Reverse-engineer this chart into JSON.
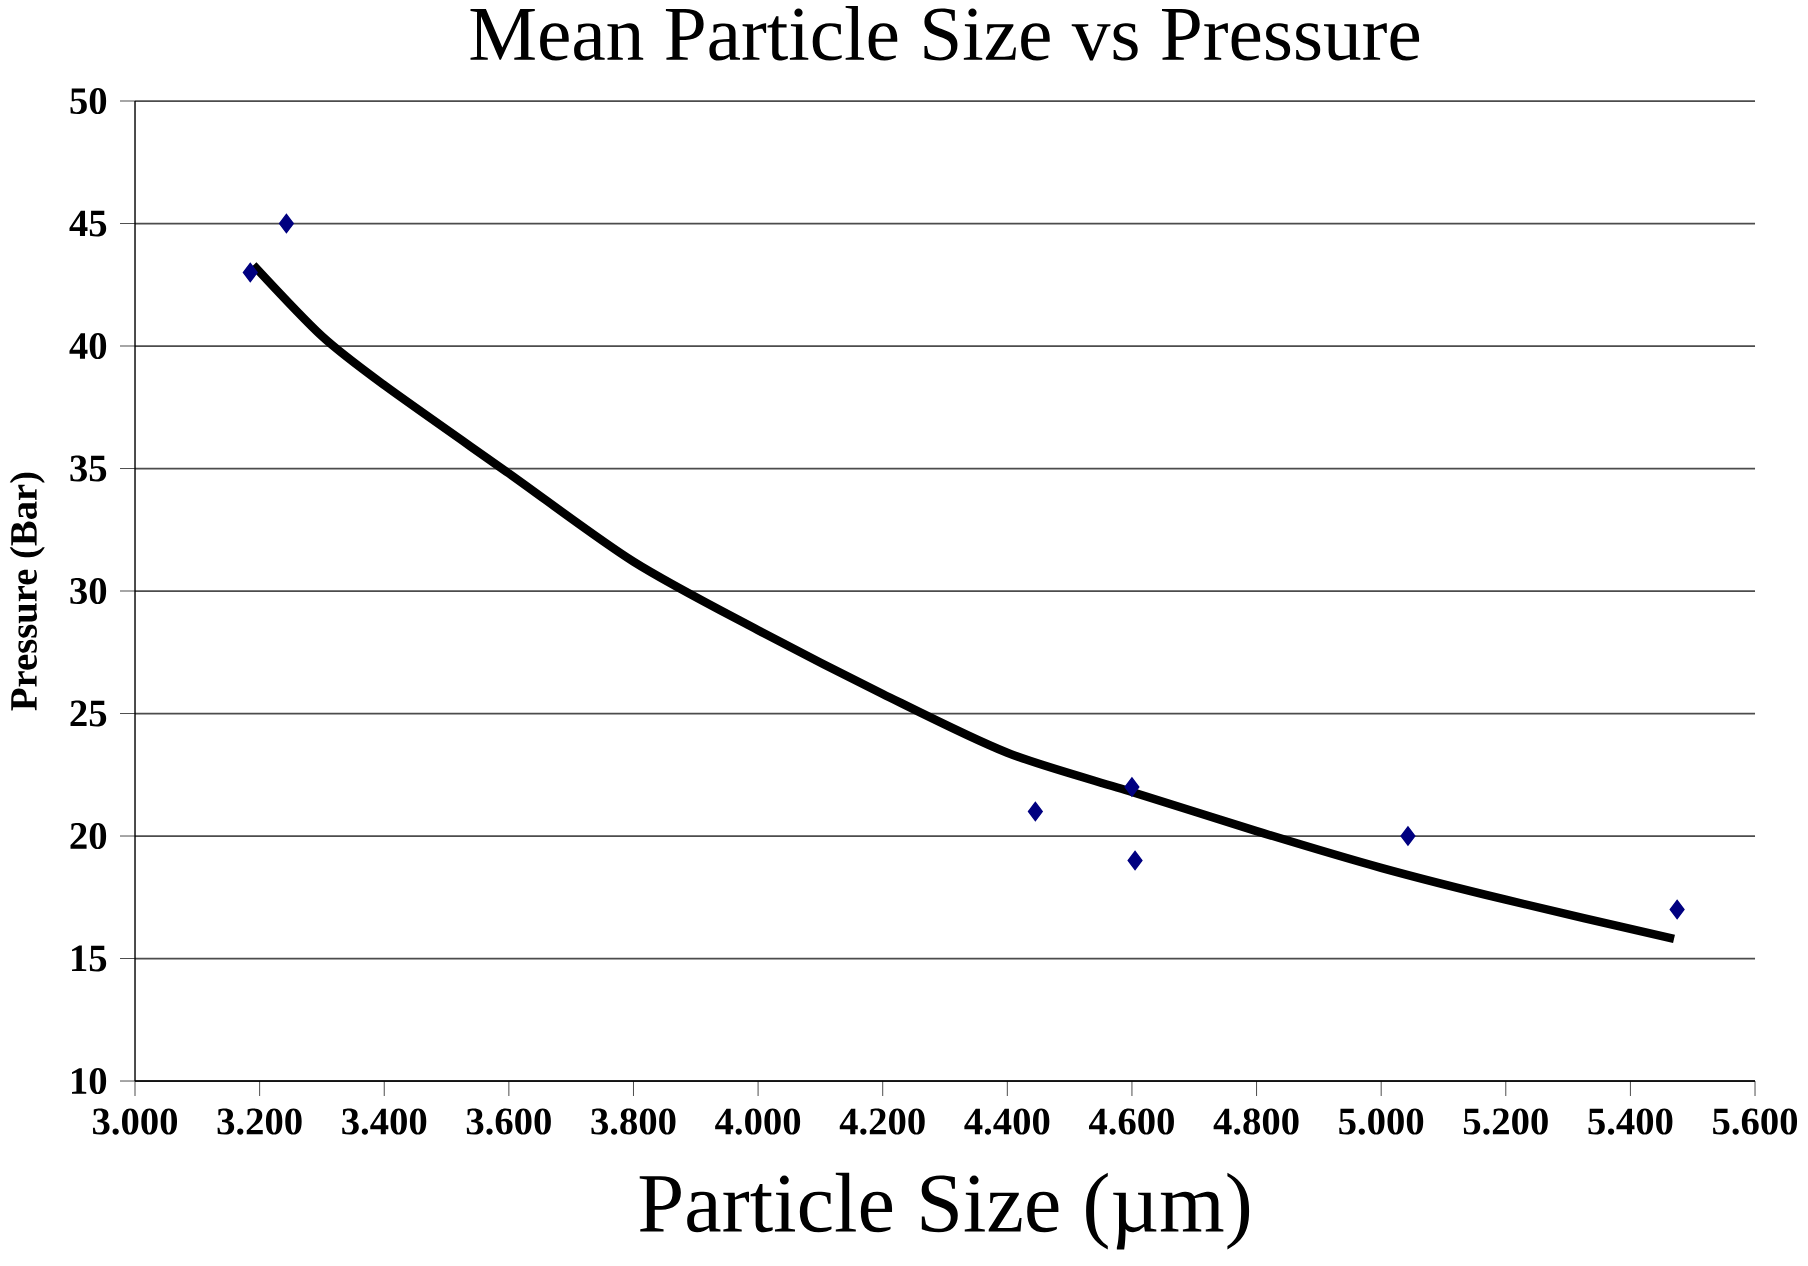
{
  "chart_data": {
    "type": "scatter",
    "title": "Mean Particle Size vs Pressure",
    "xlabel": "Particle Size (µm)",
    "ylabel": "Pressure (Bar)",
    "series": [
      {
        "color": "#000080",
        "marker": "diamond",
        "x": [
          3.185,
          3.243,
          4.445,
          4.6,
          4.605,
          5.043,
          5.475
        ],
        "values": [
          43,
          45,
          21,
          22,
          19,
          20,
          17
        ]
      },
      {
        "type": "line",
        "color": "#000000",
        "marker": "none",
        "line_style": "solid",
        "x": [
          3.19,
          3.3,
          3.4,
          3.6,
          3.8,
          4.0,
          4.2,
          4.4,
          4.6,
          4.8,
          5.0,
          5.2,
          5.47
        ],
        "values": [
          43.3,
          40.4,
          38.4,
          34.8,
          31.2,
          28.4,
          25.8,
          23.4,
          21.8,
          20.2,
          18.7,
          17.4,
          15.8
        ]
      }
    ],
    "xlim": [
      3.0,
      5.6
    ],
    "ylim": [
      10,
      50
    ],
    "xticks": [
      {
        "value": 3.0,
        "label": "3.000"
      },
      {
        "value": 3.2,
        "label": "3.200"
      },
      {
        "value": 3.4,
        "label": "3.400"
      },
      {
        "value": 3.6,
        "label": "3.600"
      },
      {
        "value": 3.8,
        "label": "3.800"
      },
      {
        "value": 4.0,
        "label": "4.000"
      },
      {
        "value": 4.2,
        "label": "4.200"
      },
      {
        "value": 4.4,
        "label": "4.400"
      },
      {
        "value": 4.6,
        "label": "4.600"
      },
      {
        "value": 4.8,
        "label": "4.800"
      },
      {
        "value": 5.0,
        "label": "5.000"
      },
      {
        "value": 5.2,
        "label": "5.200"
      },
      {
        "value": 5.4,
        "label": "5.400"
      },
      {
        "value": 5.6,
        "label": "5.600"
      }
    ],
    "yticks": [
      10,
      15,
      20,
      25,
      30,
      35,
      40,
      45,
      50
    ],
    "grid": "y"
  }
}
